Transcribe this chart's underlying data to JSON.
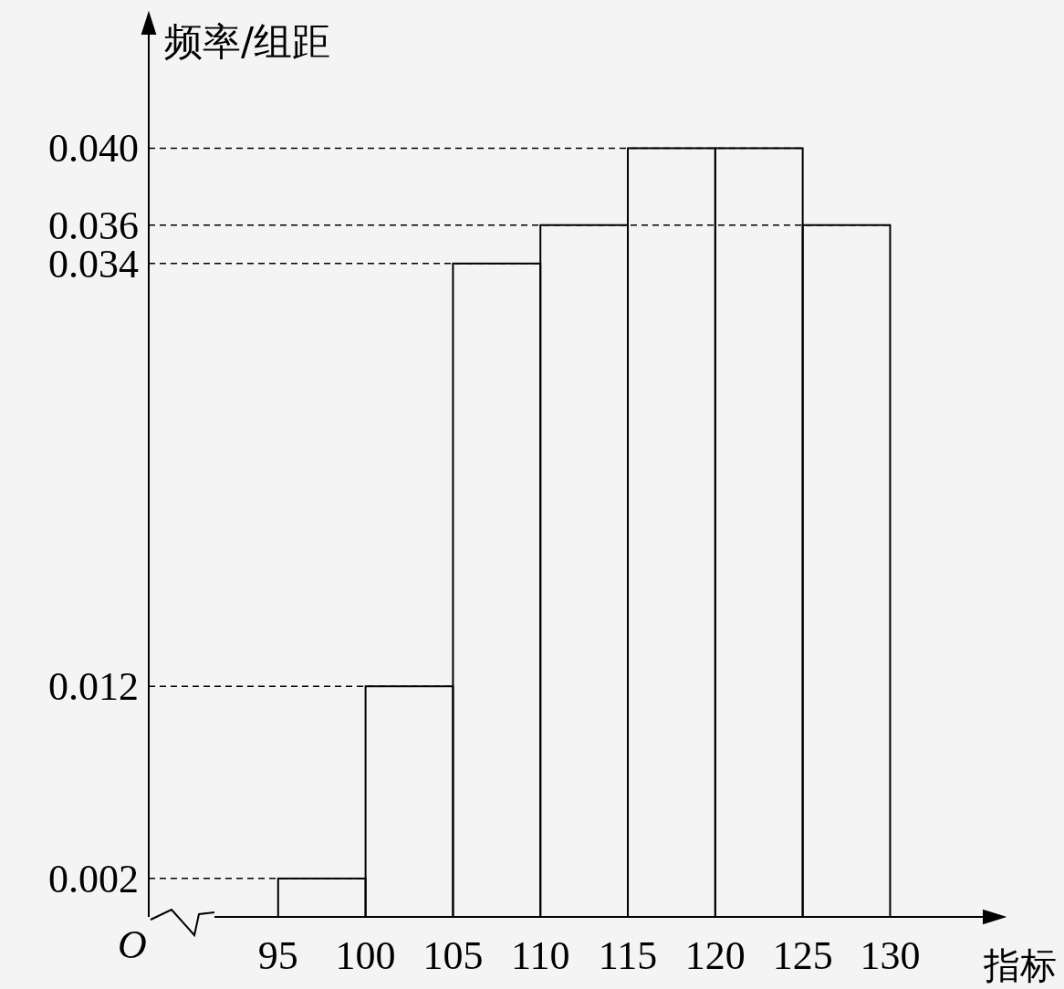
{
  "chart_data": {
    "type": "histogram",
    "xlabel": "指标",
    "ylabel": "频率/组距",
    "annotations": [
      "O"
    ],
    "bins": [
      95,
      100,
      105,
      110,
      115,
      120,
      125,
      130
    ],
    "values": [
      0.002,
      0.012,
      0.034,
      0.036,
      0.04,
      0.04,
      0.036
    ],
    "color": "#000000",
    "xlim": [
      87.6,
      136.5
    ],
    "ylim": [
      0,
      0.047
    ],
    "xticks": [
      95,
      100,
      105,
      110,
      115,
      120,
      125,
      130
    ],
    "yticks": [
      0.002,
      0.012,
      0.034,
      0.036,
      {
        "value": 0.04,
        "label": "0.040"
      }
    ],
    "ref_lines": [
      {
        "axis": "y",
        "value": 0.002,
        "line_style": "dashed"
      },
      {
        "axis": "y",
        "value": 0.012,
        "line_style": "dashed"
      },
      {
        "axis": "y",
        "value": 0.034,
        "line_style": "dashed"
      },
      {
        "axis": "y",
        "value": 0.036,
        "line_style": "dashed"
      },
      {
        "axis": "y",
        "value": 0.04,
        "line_style": "dashed"
      }
    ]
  }
}
